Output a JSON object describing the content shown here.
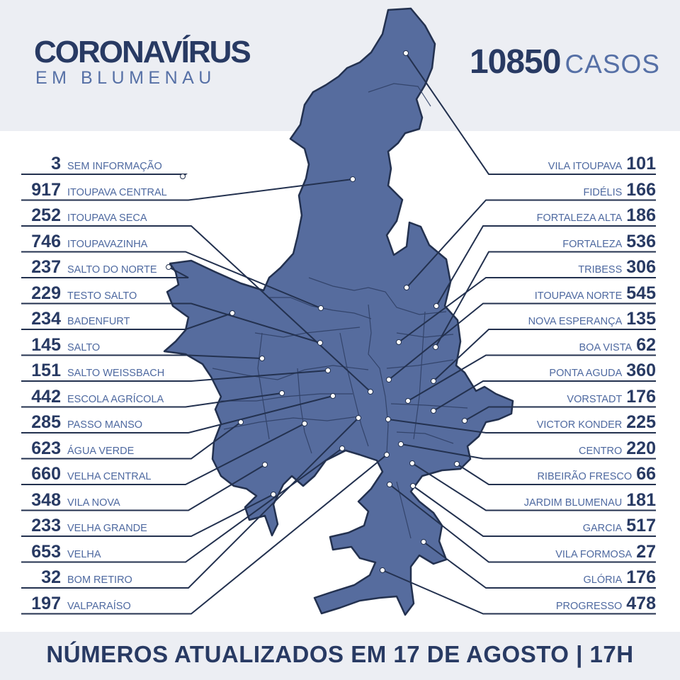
{
  "header": {
    "title": "CORONAVÍRUS",
    "subtitle": "EM BLUMENAU",
    "total_cases": "10850",
    "total_label": "CASOS"
  },
  "footer": {
    "text": "NÚMEROS ATUALIZADOS EM 17 DE AGOSTO | 17H"
  },
  "colors": {
    "navy": "#283a63",
    "map_fill": "#566c9e",
    "map_outline": "#23314f",
    "band": "#eceef3",
    "label_blue": "#4e69a0"
  },
  "left_list": [
    {
      "value": "3",
      "name": "SEM INFORMAÇÃO"
    },
    {
      "value": "917",
      "name": "ITOUPAVA CENTRAL"
    },
    {
      "value": "252",
      "name": "ITOUPAVA SECA"
    },
    {
      "value": "746",
      "name": "ITOUPAVAZINHA"
    },
    {
      "value": "237",
      "name": "SALTO DO NORTE"
    },
    {
      "value": "229",
      "name": "TESTO SALTO"
    },
    {
      "value": "234",
      "name": "BADENFURT"
    },
    {
      "value": "145",
      "name": "SALTO"
    },
    {
      "value": "151",
      "name": "SALTO WEISSBACH"
    },
    {
      "value": "442",
      "name": "ESCOLA AGRÍCOLA"
    },
    {
      "value": "285",
      "name": "PASSO MANSO"
    },
    {
      "value": "623",
      "name": "ÁGUA VERDE"
    },
    {
      "value": "660",
      "name": "VELHA CENTRAL"
    },
    {
      "value": "348",
      "name": "VILA NOVA"
    },
    {
      "value": "233",
      "name": "VELHA GRANDE"
    },
    {
      "value": "653",
      "name": "VELHA"
    },
    {
      "value": "32",
      "name": "BOM RETIRO"
    },
    {
      "value": "197",
      "name": "VALPARAÍSO"
    }
  ],
  "right_list": [
    {
      "value": "101",
      "name": "VILA ITOUPAVA"
    },
    {
      "value": "166",
      "name": "FIDÉLIS"
    },
    {
      "value": "186",
      "name": "FORTALEZA ALTA"
    },
    {
      "value": "536",
      "name": "FORTALEZA"
    },
    {
      "value": "306",
      "name": "TRIBESS"
    },
    {
      "value": "545",
      "name": "ITOUPAVA NORTE"
    },
    {
      "value": "135",
      "name": "NOVA ESPERANÇA"
    },
    {
      "value": "62",
      "name": "BOA VISTA"
    },
    {
      "value": "360",
      "name": "PONTA AGUDA"
    },
    {
      "value": "176",
      "name": "VORSTADT"
    },
    {
      "value": "225",
      "name": "VICTOR KONDER"
    },
    {
      "value": "220",
      "name": "CENTRO"
    },
    {
      "value": "66",
      "name": "RIBEIRÃO FRESCO"
    },
    {
      "value": "181",
      "name": "JARDIM BLUMENAU"
    },
    {
      "value": "517",
      "name": "GARCIA"
    },
    {
      "value": "27",
      "name": "VILA FORMOSA"
    },
    {
      "value": "176",
      "name": "GLÓRIA"
    },
    {
      "value": "478",
      "name": "PROGRESSO"
    }
  ]
}
